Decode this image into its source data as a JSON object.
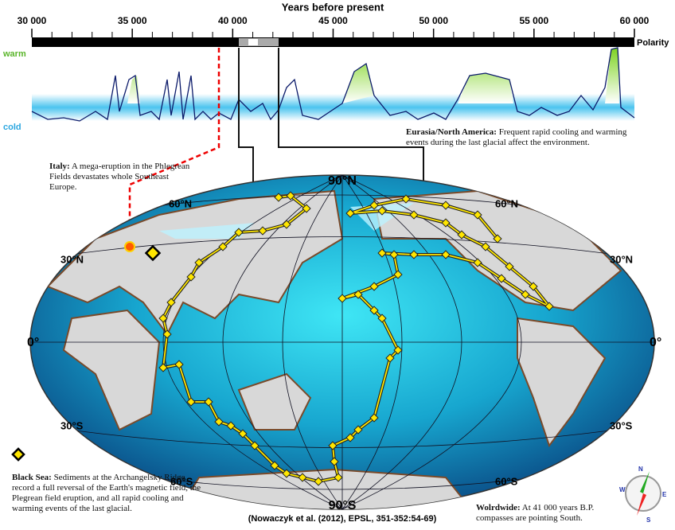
{
  "timeline": {
    "title": "Years before present",
    "ticks": [
      "30 000",
      "35 000",
      "40 000",
      "45 000",
      "50 000",
      "55 000",
      "60 000"
    ],
    "polarity_label": "Polarity",
    "warm_label": "warm",
    "cold_label": "cold"
  },
  "annotations": {
    "italy": {
      "heading": "Italy:",
      "text": "A mega-eruption in the Phlegrean Fields devastates whole Southeast Europe."
    },
    "eurasia": {
      "heading": "Eurasia/North America:",
      "text": "Frequent rapid cooling and warming events during the last glacial affect the environment."
    },
    "black_sea": {
      "heading": "Black Sea:",
      "text": "Sediments at the Archangelsky Ridge record a full reversal of the Earth's magnetic field, the Plegrean field eruption, and all rapid cooling and warming events of the last glacial."
    },
    "worldwide": {
      "heading": "Wolrdwide:",
      "text": "At 41 000 years B.P. compasses are pointing South."
    }
  },
  "map": {
    "north_pole": "90°N",
    "south_pole": "90°S",
    "equator_left": "0°",
    "equator_right": "0°",
    "lat_60n_left": "60°N",
    "lat_60n_right": "60°N",
    "lat_30n_left": "30°N",
    "lat_30n_right": "30°N",
    "lat_30s_left": "30°S",
    "lat_30s_right": "30°S",
    "lat_60s_left": "60°S",
    "lat_60s_right": "60°S"
  },
  "compass": {
    "n": "N",
    "e": "E",
    "s": "S",
    "w": "W"
  },
  "credit": "(Nowaczyk et al. (2012), EPSL, 351-352:54-69)"
}
